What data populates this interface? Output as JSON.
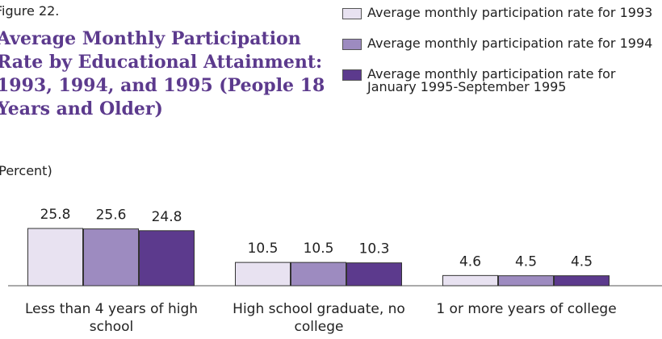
{
  "chart_data": {
    "type": "bar",
    "figure_label": "Figure 22.",
    "title": "Average Monthly Participation Rate by Educational Attainment: 1993, 1994, and 1995 (People 18 Years and Older)",
    "subtitle": "(Percent)",
    "categories": [
      "Less than 4 years of high school",
      "High school graduate, no college",
      "1 or more years of college"
    ],
    "series": [
      {
        "name": "Average monthly participation rate for 1993",
        "color": "#e8e2f1",
        "values": [
          25.8,
          10.5,
          4.6
        ]
      },
      {
        "name": "Average monthly participation rate for 1994",
        "color": "#9d8bc0",
        "values": [
          25.6,
          10.5,
          4.5
        ]
      },
      {
        "name": "Average monthly participation rate for January 1995-September 1995",
        "color": "#5c3a8d",
        "values": [
          24.8,
          10.3,
          4.5
        ]
      }
    ]
  }
}
